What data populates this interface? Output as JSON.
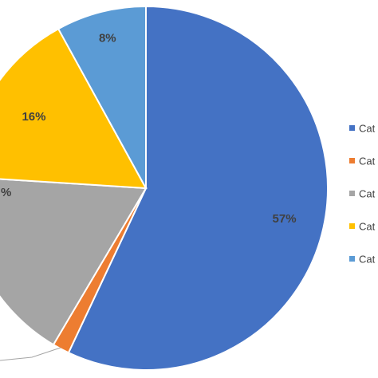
{
  "chart_data": {
    "type": "pie",
    "slices": [
      {
        "label_text": "57%",
        "value": 57,
        "color": "#4472C4",
        "legend": "Cat"
      },
      {
        "label_text": "",
        "value": 1.5,
        "color": "#ED7D31",
        "legend": "Cat"
      },
      {
        "label_text": "",
        "value": 17.5,
        "color": "#A5A5A5",
        "legend": "Cat"
      },
      {
        "label_text": "16%",
        "value": 16,
        "color": "#FFC000",
        "legend": "Cat"
      },
      {
        "label_text": "8%",
        "value": 8,
        "color": "#5B9BD5",
        "legend": "Cat"
      }
    ],
    "partial_label": "%",
    "legend_position": "right"
  }
}
